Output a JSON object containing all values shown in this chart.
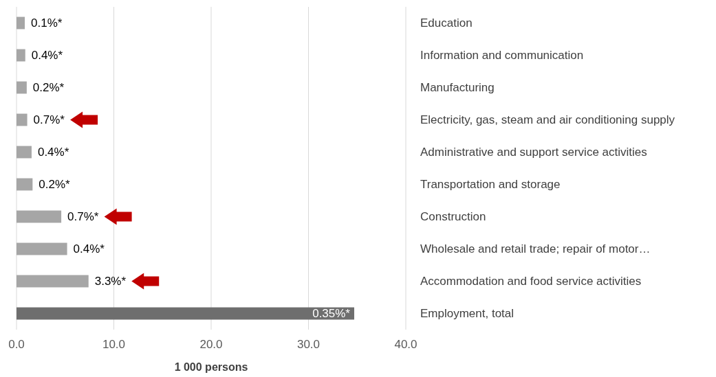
{
  "chart_data": {
    "type": "bar",
    "orientation": "horizontal",
    "xlabel": "1 000 persons",
    "categories": [
      "Education",
      "Information and communication",
      "Manufacturing",
      "Electricity, gas, steam and air conditioning supply",
      "Administrative and support service activities",
      "Transportation and storage",
      "Construction",
      "Wholesale and retail trade; repair of motor…",
      "Accommodation and food service activities",
      "Employment, total"
    ],
    "values": [
      0.85,
      0.9,
      1.05,
      1.1,
      1.55,
      1.65,
      4.6,
      5.2,
      7.4,
      34.7
    ],
    "annotations": [
      {
        "text": "0.1%*",
        "x": 0.85,
        "y": "Education"
      },
      {
        "text": "0.4%*",
        "x": 0.9,
        "y": "Information and communication"
      },
      {
        "text": "0.2%*",
        "x": 1.05,
        "y": "Manufacturing"
      },
      {
        "text": "0.7%*",
        "x": 1.1,
        "y": "Electricity, gas, steam and air conditioning supply"
      },
      {
        "text": "0.4%*",
        "x": 1.55,
        "y": "Administrative and support service activities"
      },
      {
        "text": "0.2%*",
        "x": 1.65,
        "y": "Transportation and storage"
      },
      {
        "text": "0.7%*",
        "x": 4.6,
        "y": "Construction"
      },
      {
        "text": "0.4%*",
        "x": 5.2,
        "y": "Wholesale and retail trade; repair of motor…"
      },
      {
        "text": "3.3%*",
        "x": 7.4,
        "y": "Accommodation and food service activities"
      },
      {
        "text": "0.35%*",
        "x": 34.7,
        "y": "Employment, total"
      }
    ],
    "colors": [
      "#a6a6a6",
      "#a6a6a6",
      "#a6a6a6",
      "#a6a6a6",
      "#a6a6a6",
      "#a6a6a6",
      "#a6a6a6",
      "#a6a6a6",
      "#a6a6a6",
      "#6e6e6e"
    ],
    "xlim": [
      0,
      40
    ],
    "xticks": [
      {
        "value": 0,
        "label": "0.0"
      },
      {
        "value": 10,
        "label": "10.0"
      },
      {
        "value": 20,
        "label": "20.0"
      },
      {
        "value": 30,
        "label": "30.0"
      },
      {
        "value": 40,
        "label": "40.0"
      }
    ],
    "grid": "x"
  }
}
